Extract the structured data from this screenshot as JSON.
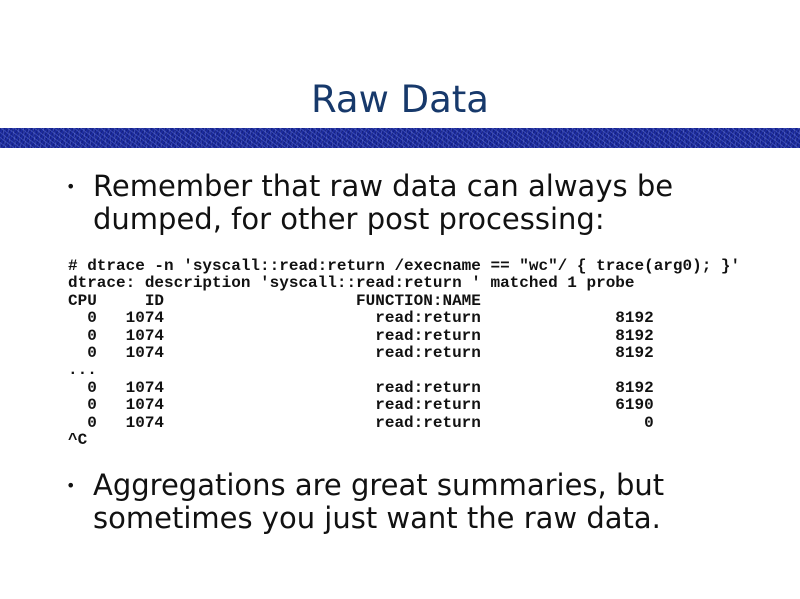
{
  "slide": {
    "title": "Raw Data",
    "banner_color": "#1b2a9e",
    "bullets": [
      {
        "icon": "bullet-dot",
        "text": "Remember that raw data can always be dumped, for other post processing:"
      },
      {
        "icon": "bullet-dot",
        "text": "Aggregations are great summaries, but sometimes you just want the raw data."
      }
    ],
    "bullet_glyph": "•",
    "code_lines": [
      "# dtrace -n 'syscall::read:return /execname == \"wc\"/ { trace(arg0); }'",
      "dtrace: description 'syscall::read:return ' matched 1 probe",
      "CPU     ID                    FUNCTION:NAME",
      "  0   1074                      read:return              8192",
      "  0   1074                      read:return              8192",
      "  0   1074                      read:return              8192",
      "...",
      "  0   1074                      read:return              8192",
      "  0   1074                      read:return              6190",
      "  0   1074                      read:return                 0",
      "^C"
    ]
  }
}
